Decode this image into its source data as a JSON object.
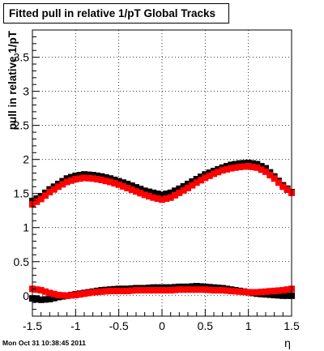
{
  "title": "Fitted pull in relative 1/pT  Global Tracks",
  "timestamp": "Mon Oct 31 10:38:45 2011",
  "chart_data": {
    "type": "scatter",
    "title": "Fitted pull in relative 1/pT  Global Tracks",
    "xlabel": "η",
    "ylabel": "pull in relative 1/pT",
    "xlim": [
      -1.5,
      1.5
    ],
    "ylim": [
      -0.3,
      3.9
    ],
    "x_ticks": [
      -1.5,
      -1,
      -0.5,
      0,
      0.5,
      1,
      1.5
    ],
    "x_tick_labels": [
      "-1.5",
      "-1",
      "-0.5",
      "0",
      "0.5",
      "1",
      "1.5"
    ],
    "y_ticks": [
      0,
      0.5,
      1,
      1.5,
      2,
      2.5,
      3,
      3.5
    ],
    "y_tick_labels": [
      "0",
      "0.5",
      "1",
      "1.5",
      "2",
      "2.5",
      "3",
      "3.5"
    ],
    "grid": true,
    "marker": "square",
    "series": [
      {
        "color": "#000000",
        "x": [
          -1.5,
          -1.4,
          -1.3,
          -1.2,
          -1.1,
          -1.0,
          -0.9,
          -0.8,
          -0.7,
          -0.6,
          -0.5,
          -0.4,
          -0.3,
          -0.2,
          -0.1,
          0.0,
          0.1,
          0.2,
          0.3,
          0.4,
          0.5,
          0.6,
          0.7,
          0.8,
          0.9,
          1.0,
          1.1,
          1.2,
          1.3,
          1.4,
          1.5
        ],
        "y": [
          1.39,
          1.46,
          1.56,
          1.64,
          1.72,
          1.76,
          1.78,
          1.77,
          1.75,
          1.72,
          1.68,
          1.64,
          1.59,
          1.54,
          1.51,
          1.48,
          1.51,
          1.57,
          1.64,
          1.71,
          1.78,
          1.83,
          1.88,
          1.92,
          1.94,
          1.95,
          1.93,
          1.87,
          1.75,
          1.62,
          1.52
        ]
      },
      {
        "color": "#ff0000",
        "x": [
          -1.5,
          -1.4,
          -1.3,
          -1.2,
          -1.1,
          -1.0,
          -0.9,
          -0.8,
          -0.7,
          -0.6,
          -0.5,
          -0.4,
          -0.3,
          -0.2,
          -0.1,
          0.0,
          0.1,
          0.2,
          0.3,
          0.4,
          0.5,
          0.6,
          0.7,
          0.8,
          0.9,
          1.0,
          1.1,
          1.2,
          1.3,
          1.4,
          1.5
        ],
        "y": [
          1.34,
          1.42,
          1.52,
          1.6,
          1.67,
          1.71,
          1.73,
          1.72,
          1.7,
          1.67,
          1.63,
          1.58,
          1.53,
          1.48,
          1.44,
          1.41,
          1.44,
          1.51,
          1.58,
          1.66,
          1.73,
          1.79,
          1.84,
          1.87,
          1.89,
          1.9,
          1.88,
          1.82,
          1.72,
          1.6,
          1.51
        ]
      },
      {
        "color": "#000000",
        "x": [
          -1.5,
          -1.4,
          -1.3,
          -1.2,
          -1.1,
          -1.0,
          -0.9,
          -0.8,
          -0.7,
          -0.6,
          -0.5,
          -0.4,
          -0.3,
          -0.2,
          -0.1,
          0.0,
          0.1,
          0.2,
          0.3,
          0.4,
          0.5,
          0.6,
          0.7,
          0.8,
          0.9,
          1.0,
          1.1,
          1.2,
          1.3,
          1.4,
          1.5
        ],
        "y": [
          -0.04,
          -0.06,
          -0.05,
          -0.02,
          0.0,
          0.02,
          0.04,
          0.06,
          0.08,
          0.09,
          0.1,
          0.1,
          0.11,
          0.11,
          0.12,
          0.12,
          0.12,
          0.13,
          0.13,
          0.14,
          0.13,
          0.12,
          0.11,
          0.09,
          0.07,
          0.05,
          0.03,
          0.02,
          0.01,
          0.0,
          0.0
        ]
      },
      {
        "color": "#ff0000",
        "x": [
          -1.5,
          -1.4,
          -1.3,
          -1.2,
          -1.1,
          -1.0,
          -0.9,
          -0.8,
          -0.7,
          -0.6,
          -0.5,
          -0.4,
          -0.3,
          -0.2,
          -0.1,
          0.0,
          0.1,
          0.2,
          0.3,
          0.4,
          0.5,
          0.6,
          0.7,
          0.8,
          0.9,
          1.0,
          1.1,
          1.2,
          1.3,
          1.4,
          1.5
        ],
        "y": [
          0.1,
          0.08,
          0.04,
          0.01,
          0.0,
          0.01,
          0.03,
          0.05,
          0.06,
          0.07,
          0.07,
          0.07,
          0.08,
          0.08,
          0.08,
          0.08,
          0.08,
          0.09,
          0.09,
          0.09,
          0.09,
          0.08,
          0.08,
          0.07,
          0.06,
          0.05,
          0.05,
          0.06,
          0.07,
          0.08,
          0.1
        ]
      }
    ]
  }
}
